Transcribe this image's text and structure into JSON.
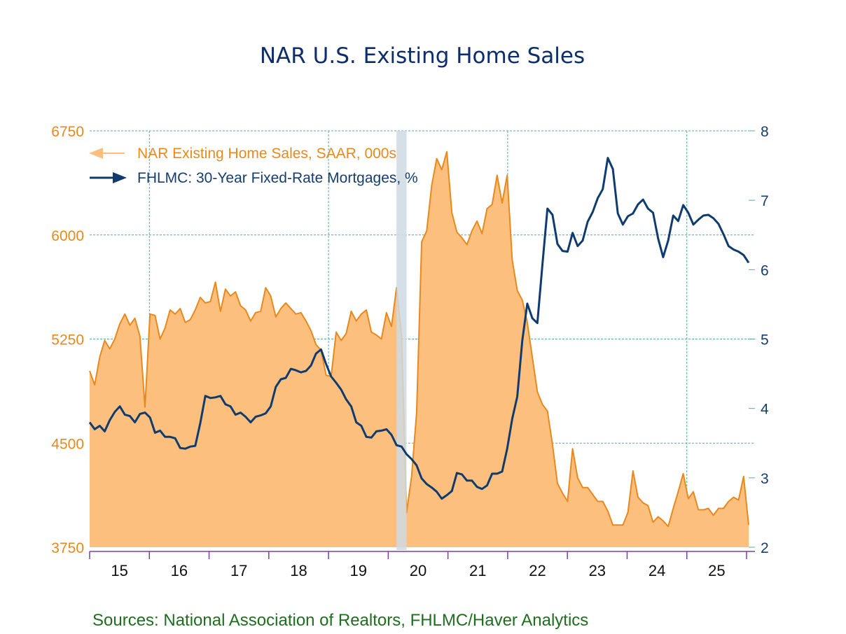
{
  "chart_data": {
    "type": "area",
    "title": "NAR U.S. Existing Home Sales",
    "source": "Sources:   National Association of Realtors, FHLMC/Haver Analytics",
    "frequency": "monthly",
    "x_start": "2015-01",
    "x_end": "2025-12",
    "x_tick_labels": [
      "15",
      "16",
      "17",
      "18",
      "19",
      "20",
      "21",
      "22",
      "23",
      "24",
      "25"
    ],
    "x_range": [
      2015,
      2026
    ],
    "recession_band": {
      "start": "2020-02",
      "end": "2020-04"
    },
    "grid": true,
    "legend_placement": "top-left",
    "colors": {
      "sales_fill": "#fdbf7e",
      "sales_line": "#e8891d",
      "mortgage_line": "#0f3b6e",
      "recession": "#cfd9e0",
      "grid": "#5aa9a3",
      "x_axis": "#7a3fa6",
      "title": "#0d2d6c",
      "source": "#1f6e1f"
    },
    "left_axis": {
      "label": "NAR Existing Home Sales, SAAR, 000s",
      "ylim": [
        3750,
        6750
      ],
      "ticks": [
        "3750",
        "4500",
        "5250",
        "6000",
        "6750"
      ]
    },
    "right_axis": {
      "label": "FHLMC: 30-Year Fixed-Rate Mortgages, %",
      "ylim": [
        2,
        8
      ],
      "ticks": [
        "2",
        "3",
        "4",
        "5",
        "6",
        "7",
        "8"
      ]
    },
    "series": [
      {
        "name": "NAR Existing Home Sales, SAAR, 000s",
        "axis": "left",
        "style": "area",
        "legend_arrow": "left",
        "values": [
          5020,
          4920,
          5120,
          5240,
          5180,
          5250,
          5360,
          5430,
          5350,
          5400,
          5270,
          4760,
          5430,
          5420,
          5250,
          5330,
          5460,
          5430,
          5470,
          5370,
          5390,
          5460,
          5550,
          5510,
          5520,
          5660,
          5450,
          5610,
          5560,
          5590,
          5490,
          5460,
          5380,
          5440,
          5450,
          5620,
          5560,
          5410,
          5470,
          5510,
          5470,
          5430,
          5440,
          5380,
          5310,
          5210,
          5170,
          4990,
          4980,
          5300,
          5240,
          5290,
          5450,
          5380,
          5430,
          5460,
          5300,
          5280,
          5250,
          5440,
          5340,
          5620,
          5270,
          4000,
          4260,
          4720,
          5950,
          6030,
          6360,
          6550,
          6470,
          6600,
          6160,
          6020,
          5980,
          5930,
          6030,
          6100,
          6010,
          6190,
          6220,
          6430,
          6230,
          6430,
          5820,
          5600,
          5530,
          5370,
          5120,
          4870,
          4780,
          4730,
          4490,
          4210,
          4140,
          4080,
          4460,
          4250,
          4180,
          4180,
          4130,
          4080,
          4080,
          4010,
          3910,
          3910,
          3910,
          4000,
          4300,
          4110,
          4070,
          4050,
          3930,
          3970,
          3940,
          3900,
          4030,
          4150,
          4280,
          4100,
          4150,
          4020,
          4020,
          4030,
          3980,
          4030,
          4030,
          4080,
          4110,
          4090,
          4260,
          3910
        ]
      },
      {
        "name": "FHLMC: 30-Year Fixed-Rate Mortgages, %",
        "axis": "right",
        "style": "line",
        "legend_arrow": "right",
        "values": [
          3.8,
          3.7,
          3.75,
          3.67,
          3.83,
          3.95,
          4.03,
          3.91,
          3.89,
          3.8,
          3.92,
          3.94,
          3.87,
          3.65,
          3.68,
          3.59,
          3.59,
          3.57,
          3.43,
          3.42,
          3.45,
          3.46,
          3.79,
          4.18,
          4.15,
          4.16,
          4.18,
          4.06,
          4.03,
          3.91,
          3.94,
          3.88,
          3.8,
          3.88,
          3.9,
          3.93,
          4.03,
          4.31,
          4.42,
          4.44,
          4.57,
          4.55,
          4.52,
          4.54,
          4.62,
          4.79,
          4.85,
          4.64,
          4.46,
          4.37,
          4.27,
          4.13,
          4.03,
          3.8,
          3.75,
          3.59,
          3.58,
          3.67,
          3.68,
          3.7,
          3.62,
          3.47,
          3.45,
          3.34,
          3.27,
          3.18,
          2.99,
          2.91,
          2.86,
          2.8,
          2.7,
          2.75,
          2.81,
          3.07,
          3.05,
          2.96,
          2.96,
          2.87,
          2.84,
          2.89,
          3.06,
          3.06,
          3.09,
          3.42,
          3.85,
          4.17,
          4.98,
          5.51,
          5.3,
          5.23,
          6.07,
          6.88,
          6.79,
          6.37,
          6.27,
          6.26,
          6.53,
          6.34,
          6.42,
          6.69,
          6.83,
          7.03,
          7.16,
          7.61,
          7.45,
          6.81,
          6.65,
          6.77,
          6.81,
          6.94,
          7.01,
          6.88,
          6.82,
          6.45,
          6.18,
          6.42,
          6.78,
          6.7,
          6.93,
          6.82,
          6.65,
          6.72,
          6.78,
          6.79,
          6.74,
          6.66,
          6.51,
          6.34,
          6.29,
          6.26,
          6.21,
          6.1
        ]
      }
    ]
  }
}
